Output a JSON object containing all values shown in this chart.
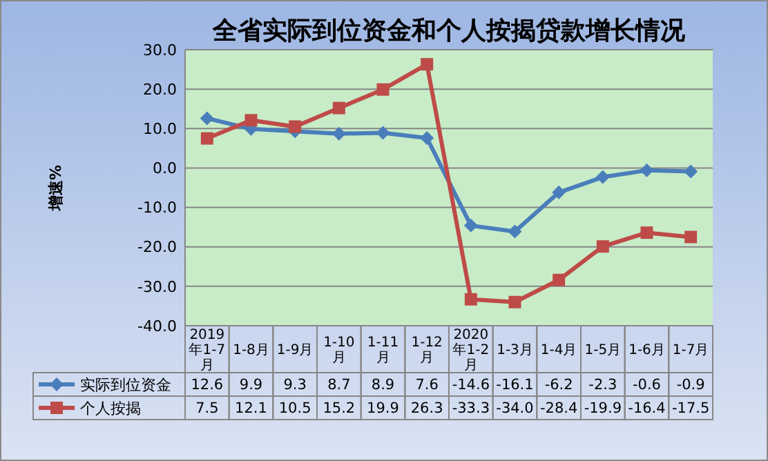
{
  "chart_data": {
    "type": "line",
    "title": "全省实际到位资金和个人按揭贷款增长情况",
    "ylabel": "增速%",
    "categories": [
      "2019年1-7月",
      "1-8月",
      "1-9月",
      "1-10月",
      "1-11月",
      "1-12月",
      "2020年1-2月",
      "1-3月",
      "1-4月",
      "1-5月",
      "1-6月",
      "1-7月"
    ],
    "series": [
      {
        "name": "实际到位资金",
        "color": "#4a7ebb",
        "marker": "diamond",
        "values": [
          12.6,
          9.9,
          9.3,
          8.7,
          8.9,
          7.6,
          -14.6,
          -16.1,
          -6.2,
          -2.3,
          -0.6,
          -0.9
        ],
        "value_labels": [
          "12.6",
          "9.9",
          "9.3",
          "8.7",
          "8.9",
          "7.6",
          "-14.6",
          "-16.1",
          "-6.2",
          "-2.3",
          "-0.6",
          "-0.9"
        ]
      },
      {
        "name": "个人按揭",
        "color": "#be4b48",
        "marker": "square",
        "values": [
          7.5,
          12.1,
          10.5,
          15.2,
          19.9,
          26.3,
          -33.3,
          -34.0,
          -28.4,
          -19.9,
          -16.4,
          -17.5
        ],
        "value_labels": [
          "7.5",
          "12.1",
          "10.5",
          "15.2",
          "19.9",
          "26.3",
          "-33.3",
          "-34.0",
          "-28.4",
          "-19.9",
          "-16.4",
          "-17.5"
        ]
      }
    ],
    "ylim": [
      -40,
      30
    ],
    "yticks": [
      {
        "value": -40,
        "label": "-40.0"
      },
      {
        "value": -30,
        "label": "-30.0"
      },
      {
        "value": -20,
        "label": "-20.0"
      },
      {
        "value": -10,
        "label": "-10.0"
      },
      {
        "value": 0,
        "label": "0.0"
      },
      {
        "value": 10,
        "label": "10.0"
      },
      {
        "value": 20,
        "label": "20.0"
      },
      {
        "value": 30,
        "label": "30.0"
      }
    ],
    "grid": "y",
    "legend": "bottom"
  }
}
